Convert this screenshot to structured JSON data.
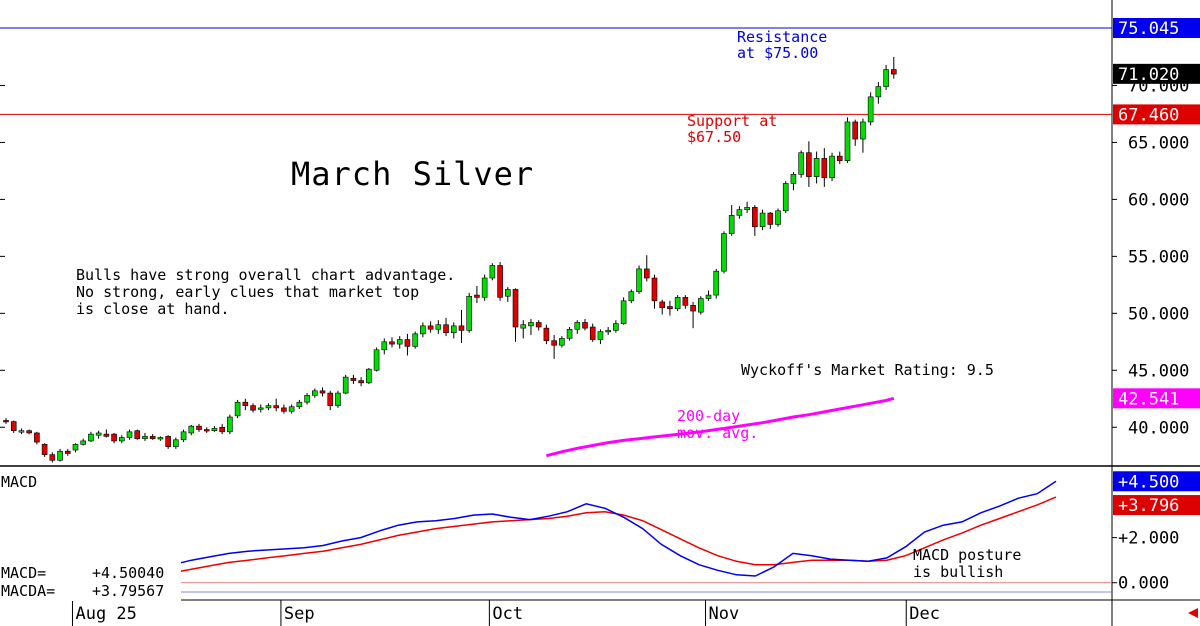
{
  "chart_data": {
    "type": "candlestick",
    "title": "March Silver",
    "note": [
      "Bulls have strong overall chart advantage.",
      "No strong, early clues that market top",
      "is close at hand."
    ],
    "rating": "Wyckoff's Market Rating: 9.5",
    "resistance": {
      "value": 75.045,
      "label": [
        "Resistance",
        "at $75.00"
      ],
      "tag": "75.045"
    },
    "support": {
      "value": 67.46,
      "label": [
        "Support at",
        "$67.50"
      ],
      "tag": "67.460"
    },
    "last_price": {
      "value": 71.02,
      "tag": "71.020"
    },
    "ma": {
      "label": [
        "200-day",
        "mov. avg."
      ],
      "tag": "42.541",
      "value": 42.541,
      "x": [
        47,
        45,
        43,
        41,
        39,
        37,
        35,
        33,
        31,
        29,
        27,
        25,
        23,
        21,
        19,
        17,
        15,
        13,
        11,
        9,
        7,
        5,
        3,
        1,
        0
      ],
      "y": [
        37.2,
        37.5,
        37.85,
        38.15,
        38.4,
        38.65,
        38.85,
        39.0,
        39.15,
        39.3,
        39.45,
        39.6,
        39.8,
        40.0,
        40.2,
        40.4,
        40.65,
        40.9,
        41.1,
        41.35,
        41.6,
        41.85,
        42.1,
        42.35,
        42.541
      ]
    },
    "y_ticks": [
      "40.000",
      "45.000",
      "50.000",
      "55.000",
      "60.000",
      "65.000",
      "70.000"
    ],
    "y_tick_values": [
      40,
      45,
      50,
      55,
      60,
      65,
      70
    ],
    "y_range": [
      36.6,
      76.8
    ],
    "x_labels": [
      {
        "label": "Aug 25",
        "bar": 9
      },
      {
        "label": "Sep",
        "bar": 36
      },
      {
        "label": "Oct",
        "bar": 63
      },
      {
        "label": "Nov",
        "bar": 91
      },
      {
        "label": "Dec",
        "bar": 117
      }
    ],
    "bars": [
      {
        "o": 40.6,
        "h": 40.8,
        "l": 40.3,
        "c": 40.5
      },
      {
        "o": 40.5,
        "h": 40.6,
        "l": 39.5,
        "c": 39.7
      },
      {
        "o": 39.6,
        "h": 39.9,
        "l": 39.4,
        "c": 39.7
      },
      {
        "o": 39.7,
        "h": 39.8,
        "l": 39.4,
        "c": 39.5
      },
      {
        "o": 39.5,
        "h": 39.6,
        "l": 38.5,
        "c": 38.7
      },
      {
        "o": 38.5,
        "h": 38.6,
        "l": 37.4,
        "c": 37.6
      },
      {
        "o": 37.6,
        "h": 37.8,
        "l": 36.9,
        "c": 37.1
      },
      {
        "o": 37.1,
        "h": 38.1,
        "l": 37.0,
        "c": 37.9
      },
      {
        "o": 37.9,
        "h": 38.1,
        "l": 37.5,
        "c": 37.7
      },
      {
        "o": 38.0,
        "h": 38.6,
        "l": 37.8,
        "c": 38.5
      },
      {
        "o": 38.5,
        "h": 39.0,
        "l": 38.4,
        "c": 38.8
      },
      {
        "o": 38.8,
        "h": 39.6,
        "l": 38.7,
        "c": 39.4
      },
      {
        "o": 39.3,
        "h": 39.7,
        "l": 39.0,
        "c": 39.5
      },
      {
        "o": 39.4,
        "h": 39.8,
        "l": 39.1,
        "c": 39.2
      },
      {
        "o": 39.4,
        "h": 39.5,
        "l": 38.6,
        "c": 38.8
      },
      {
        "o": 38.8,
        "h": 39.3,
        "l": 38.6,
        "c": 39.1
      },
      {
        "o": 39.1,
        "h": 39.8,
        "l": 38.9,
        "c": 39.6
      },
      {
        "o": 39.7,
        "h": 39.8,
        "l": 38.9,
        "c": 39.0
      },
      {
        "o": 39.0,
        "h": 39.5,
        "l": 38.8,
        "c": 39.2
      },
      {
        "o": 39.2,
        "h": 39.4,
        "l": 38.9,
        "c": 39.0
      },
      {
        "o": 39.0,
        "h": 39.2,
        "l": 38.8,
        "c": 39.1
      },
      {
        "o": 39.2,
        "h": 39.3,
        "l": 38.1,
        "c": 38.3
      },
      {
        "o": 38.3,
        "h": 39.1,
        "l": 38.1,
        "c": 38.9
      },
      {
        "o": 38.9,
        "h": 39.8,
        "l": 38.7,
        "c": 39.6
      },
      {
        "o": 39.5,
        "h": 40.2,
        "l": 39.3,
        "c": 40.1
      },
      {
        "o": 40.1,
        "h": 40.3,
        "l": 39.6,
        "c": 39.8
      },
      {
        "o": 39.8,
        "h": 40.0,
        "l": 39.5,
        "c": 39.7
      },
      {
        "o": 39.7,
        "h": 40.1,
        "l": 39.6,
        "c": 39.9
      },
      {
        "o": 40.0,
        "h": 40.3,
        "l": 39.4,
        "c": 39.6
      },
      {
        "o": 39.6,
        "h": 41.1,
        "l": 39.4,
        "c": 40.9
      },
      {
        "o": 41.0,
        "h": 42.4,
        "l": 40.8,
        "c": 42.2
      },
      {
        "o": 42.2,
        "h": 42.5,
        "l": 41.5,
        "c": 41.9
      },
      {
        "o": 41.9,
        "h": 42.1,
        "l": 41.3,
        "c": 41.5
      },
      {
        "o": 41.6,
        "h": 42.0,
        "l": 41.3,
        "c": 41.7
      },
      {
        "o": 41.7,
        "h": 42.1,
        "l": 41.5,
        "c": 41.9
      },
      {
        "o": 41.9,
        "h": 42.5,
        "l": 41.4,
        "c": 41.7
      },
      {
        "o": 41.7,
        "h": 42.0,
        "l": 41.2,
        "c": 41.4
      },
      {
        "o": 41.4,
        "h": 42.0,
        "l": 41.2,
        "c": 41.8
      },
      {
        "o": 41.8,
        "h": 42.4,
        "l": 41.6,
        "c": 42.2
      },
      {
        "o": 42.2,
        "h": 43.0,
        "l": 42.0,
        "c": 42.8
      },
      {
        "o": 42.8,
        "h": 43.4,
        "l": 42.6,
        "c": 43.2
      },
      {
        "o": 43.2,
        "h": 43.5,
        "l": 42.7,
        "c": 43.0
      },
      {
        "o": 43.0,
        "h": 43.2,
        "l": 41.5,
        "c": 41.9
      },
      {
        "o": 41.9,
        "h": 43.2,
        "l": 41.7,
        "c": 43.0
      },
      {
        "o": 43.0,
        "h": 44.6,
        "l": 42.9,
        "c": 44.4
      },
      {
        "o": 44.3,
        "h": 44.6,
        "l": 43.8,
        "c": 44.1
      },
      {
        "o": 44.1,
        "h": 44.4,
        "l": 43.6,
        "c": 43.9
      },
      {
        "o": 43.9,
        "h": 45.2,
        "l": 43.8,
        "c": 45.1
      },
      {
        "o": 45.0,
        "h": 47.0,
        "l": 44.9,
        "c": 46.8
      },
      {
        "o": 46.8,
        "h": 47.8,
        "l": 46.4,
        "c": 47.5
      },
      {
        "o": 47.5,
        "h": 47.9,
        "l": 47.0,
        "c": 47.3
      },
      {
        "o": 47.3,
        "h": 48.0,
        "l": 46.9,
        "c": 47.7
      },
      {
        "o": 47.7,
        "h": 48.2,
        "l": 46.3,
        "c": 47.1
      },
      {
        "o": 47.1,
        "h": 48.4,
        "l": 46.9,
        "c": 48.2
      },
      {
        "o": 48.2,
        "h": 49.2,
        "l": 47.9,
        "c": 48.9
      },
      {
        "o": 48.9,
        "h": 49.3,
        "l": 48.3,
        "c": 48.6
      },
      {
        "o": 48.6,
        "h": 49.4,
        "l": 48.2,
        "c": 49.0
      },
      {
        "o": 49.0,
        "h": 49.6,
        "l": 48.0,
        "c": 48.3
      },
      {
        "o": 48.3,
        "h": 49.2,
        "l": 47.8,
        "c": 48.9
      },
      {
        "o": 48.9,
        "h": 50.3,
        "l": 47.4,
        "c": 48.5
      },
      {
        "o": 48.5,
        "h": 51.8,
        "l": 48.3,
        "c": 51.5
      },
      {
        "o": 51.6,
        "h": 52.4,
        "l": 50.9,
        "c": 51.4
      },
      {
        "o": 51.4,
        "h": 53.4,
        "l": 51.1,
        "c": 53.1
      },
      {
        "o": 53.1,
        "h": 54.4,
        "l": 52.9,
        "c": 54.2
      },
      {
        "o": 54.2,
        "h": 54.5,
        "l": 51.1,
        "c": 51.4
      },
      {
        "o": 51.5,
        "h": 52.3,
        "l": 51.0,
        "c": 52.1
      },
      {
        "o": 52.1,
        "h": 52.2,
        "l": 47.5,
        "c": 48.8
      },
      {
        "o": 48.7,
        "h": 49.4,
        "l": 47.8,
        "c": 49.0
      },
      {
        "o": 48.9,
        "h": 49.5,
        "l": 48.1,
        "c": 49.2
      },
      {
        "o": 49.2,
        "h": 49.4,
        "l": 48.5,
        "c": 48.8
      },
      {
        "o": 48.7,
        "h": 49.0,
        "l": 47.3,
        "c": 47.6
      },
      {
        "o": 47.6,
        "h": 48.1,
        "l": 46.0,
        "c": 47.2
      },
      {
        "o": 47.2,
        "h": 48.0,
        "l": 47.0,
        "c": 47.8
      },
      {
        "o": 47.8,
        "h": 48.8,
        "l": 47.6,
        "c": 48.6
      },
      {
        "o": 48.6,
        "h": 49.4,
        "l": 48.2,
        "c": 49.2
      },
      {
        "o": 49.2,
        "h": 49.5,
        "l": 48.5,
        "c": 48.7
      },
      {
        "o": 48.8,
        "h": 49.1,
        "l": 47.5,
        "c": 47.7
      },
      {
        "o": 47.7,
        "h": 48.6,
        "l": 47.3,
        "c": 48.4
      },
      {
        "o": 48.4,
        "h": 48.8,
        "l": 48.1,
        "c": 48.5
      },
      {
        "o": 48.5,
        "h": 49.4,
        "l": 48.3,
        "c": 49.1
      },
      {
        "o": 49.1,
        "h": 51.4,
        "l": 49.0,
        "c": 51.1
      },
      {
        "o": 51.1,
        "h": 52.1,
        "l": 50.9,
        "c": 51.9
      },
      {
        "o": 51.9,
        "h": 54.2,
        "l": 51.7,
        "c": 53.9
      },
      {
        "o": 53.9,
        "h": 55.1,
        "l": 52.8,
        "c": 53.1
      },
      {
        "o": 53.1,
        "h": 53.4,
        "l": 50.4,
        "c": 51.1
      },
      {
        "o": 51.0,
        "h": 51.2,
        "l": 49.9,
        "c": 50.5
      },
      {
        "o": 50.6,
        "h": 51.1,
        "l": 49.8,
        "c": 50.4
      },
      {
        "o": 50.4,
        "h": 51.6,
        "l": 50.2,
        "c": 51.4
      },
      {
        "o": 51.4,
        "h": 51.6,
        "l": 50.4,
        "c": 50.7
      },
      {
        "o": 50.7,
        "h": 51.0,
        "l": 48.7,
        "c": 50.2
      },
      {
        "o": 50.1,
        "h": 51.5,
        "l": 49.9,
        "c": 51.3
      },
      {
        "o": 51.3,
        "h": 52.0,
        "l": 51.1,
        "c": 51.6
      },
      {
        "o": 51.6,
        "h": 53.9,
        "l": 51.3,
        "c": 53.7
      },
      {
        "o": 53.7,
        "h": 57.2,
        "l": 53.5,
        "c": 57.0
      },
      {
        "o": 57.0,
        "h": 59.5,
        "l": 56.8,
        "c": 58.6
      },
      {
        "o": 58.6,
        "h": 59.4,
        "l": 58.3,
        "c": 59.1
      },
      {
        "o": 59.1,
        "h": 59.8,
        "l": 58.8,
        "c": 59.3
      },
      {
        "o": 59.3,
        "h": 59.5,
        "l": 56.8,
        "c": 57.6
      },
      {
        "o": 57.6,
        "h": 59.1,
        "l": 57.3,
        "c": 58.8
      },
      {
        "o": 58.8,
        "h": 58.9,
        "l": 57.4,
        "c": 57.8
      },
      {
        "o": 57.8,
        "h": 59.2,
        "l": 57.6,
        "c": 59.0
      },
      {
        "o": 59.0,
        "h": 61.6,
        "l": 58.8,
        "c": 61.4
      },
      {
        "o": 61.4,
        "h": 62.4,
        "l": 60.8,
        "c": 62.2
      },
      {
        "o": 62.2,
        "h": 64.3,
        "l": 61.9,
        "c": 64.1
      },
      {
        "o": 64.1,
        "h": 65.1,
        "l": 61.1,
        "c": 62.0
      },
      {
        "o": 62.0,
        "h": 64.2,
        "l": 61.4,
        "c": 63.6
      },
      {
        "o": 63.6,
        "h": 64.5,
        "l": 61.1,
        "c": 61.9
      },
      {
        "o": 61.9,
        "h": 64.1,
        "l": 61.6,
        "c": 63.8
      },
      {
        "o": 63.8,
        "h": 64.2,
        "l": 63.1,
        "c": 63.4
      },
      {
        "o": 63.4,
        "h": 67.2,
        "l": 63.2,
        "c": 66.8
      },
      {
        "o": 66.8,
        "h": 67.0,
        "l": 64.7,
        "c": 65.3
      },
      {
        "o": 65.3,
        "h": 67.1,
        "l": 64.1,
        "c": 66.8
      },
      {
        "o": 66.8,
        "h": 69.4,
        "l": 66.5,
        "c": 69.0
      },
      {
        "o": 69.0,
        "h": 70.3,
        "l": 68.4,
        "c": 69.9
      },
      {
        "o": 69.9,
        "h": 71.8,
        "l": 69.6,
        "c": 71.4
      },
      {
        "o": 71.4,
        "h": 72.5,
        "l": 70.6,
        "c": 71.0
      }
    ],
    "bars_x_start": 6,
    "bars_x_step": 7.72,
    "macd": {
      "title": "MACD",
      "macd_label": "MACD=",
      "macd_value": "+4.50040",
      "macda_label": "MACDA=",
      "macda_value": "+3.79567",
      "tags": {
        "macd": "+4.500",
        "macda": "+3.796"
      },
      "y_ticks": [
        "0.000",
        "+2.000"
      ],
      "y_tick_values": [
        0,
        2
      ],
      "y_range": [
        -0.5,
        5.0
      ],
      "note": [
        "MACD posture",
        "is bullish"
      ],
      "macd_line": [
        0.0,
        0.05,
        0.12,
        0.25,
        0.3,
        0.55,
        0.8,
        1.0,
        1.15,
        1.3,
        1.4,
        1.45,
        1.5,
        1.55,
        1.65,
        1.85,
        2.0,
        2.3,
        2.55,
        2.7,
        2.75,
        2.85,
        3.0,
        3.05,
        2.9,
        2.8,
        2.95,
        3.15,
        3.5,
        3.3,
        2.9,
        2.4,
        1.7,
        1.2,
        0.8,
        0.55,
        0.35,
        0.3,
        0.7,
        1.3,
        1.2,
        1.05,
        1.0,
        0.95,
        1.1,
        1.6,
        2.25,
        2.55,
        2.7,
        3.1,
        3.4,
        3.75,
        3.95,
        4.5
      ],
      "signal_line": [
        0.1,
        0.1,
        0.12,
        0.15,
        0.2,
        0.3,
        0.45,
        0.6,
        0.75,
        0.9,
        1.0,
        1.1,
        1.2,
        1.3,
        1.4,
        1.55,
        1.7,
        1.9,
        2.1,
        2.25,
        2.4,
        2.5,
        2.6,
        2.7,
        2.75,
        2.8,
        2.85,
        2.95,
        3.1,
        3.15,
        3.0,
        2.75,
        2.35,
        1.95,
        1.55,
        1.2,
        0.95,
        0.8,
        0.8,
        0.9,
        1.0,
        1.0,
        1.0,
        0.95,
        1.0,
        1.2,
        1.55,
        1.9,
        2.2,
        2.55,
        2.85,
        3.15,
        3.45,
        3.8
      ]
    }
  }
}
